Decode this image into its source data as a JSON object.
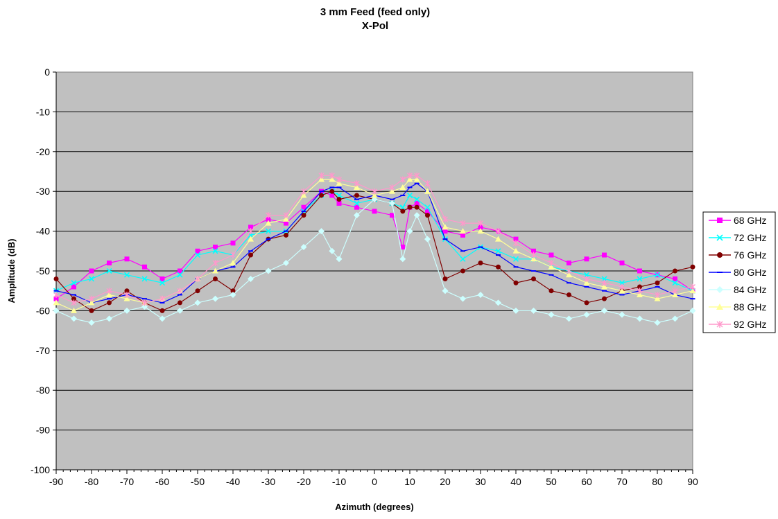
{
  "chart_data": {
    "type": "line",
    "title": "3 mm Feed (feed only)",
    "subtitle": "X-Pol",
    "xlabel": "Azimuth (degrees)",
    "ylabel": "Amplitude (dB)",
    "xlim": [
      -90,
      90
    ],
    "ylim": [
      -100,
      0
    ],
    "xticks": [
      -90,
      -80,
      -70,
      -60,
      -50,
      -40,
      -30,
      -20,
      -10,
      0,
      10,
      20,
      30,
      40,
      50,
      60,
      70,
      80,
      90
    ],
    "yticks": [
      0,
      -10,
      -20,
      -30,
      -40,
      -50,
      -60,
      -70,
      -80,
      -90,
      -100
    ],
    "grid": "horizontal",
    "plot_background": "#c0c0c0",
    "legend": "right",
    "x": [
      -90,
      -85,
      -80,
      -75,
      -70,
      -65,
      -60,
      -55,
      -50,
      -45,
      -40,
      -35,
      -30,
      -25,
      -20,
      -15,
      -12,
      -10,
      -5,
      0,
      5,
      8,
      10,
      12,
      15,
      20,
      25,
      30,
      35,
      40,
      45,
      50,
      55,
      60,
      65,
      70,
      75,
      80,
      85,
      90
    ],
    "series": [
      {
        "name": "68 GHz",
        "color": "#ff00ff",
        "marker": "square",
        "values": [
          -57,
          -54,
          -50,
          -48,
          -47,
          -49,
          -52,
          -50,
          -45,
          -44,
          -43,
          -39,
          -37,
          -38,
          -34,
          -30,
          -31,
          -33,
          -34,
          -35,
          -36,
          -44,
          -34,
          -33,
          -35,
          -40,
          -41,
          -39,
          -40,
          -42,
          -45,
          -46,
          -48,
          -47,
          -46,
          -48,
          -50,
          -51,
          -52,
          -55
        ]
      },
      {
        "name": "72 GHz",
        "color": "#00ffff",
        "marker": "x",
        "values": [
          -55,
          -53,
          -52,
          -50,
          -51,
          -52,
          -53,
          -51,
          -46,
          -45,
          -46,
          -41,
          -40,
          -40,
          -35,
          -31,
          -30,
          -31,
          -33,
          -32,
          -33,
          -34,
          -31,
          -32,
          -34,
          -42,
          -47,
          -44,
          -45,
          -47,
          -47,
          -49,
          -50,
          -51,
          -52,
          -53,
          -52,
          -51,
          -53,
          -55
        ]
      },
      {
        "name": "76 GHz",
        "color": "#800000",
        "marker": "circle",
        "values": [
          -52,
          -57,
          -60,
          -58,
          -55,
          -58,
          -60,
          -58,
          -55,
          -52,
          -55,
          -46,
          -42,
          -41,
          -36,
          -31,
          -30,
          -32,
          -31,
          -32,
          -33,
          -35,
          -34,
          -34,
          -36,
          -52,
          -50,
          -48,
          -49,
          -53,
          -52,
          -55,
          -56,
          -58,
          -57,
          -55,
          -54,
          -53,
          -50,
          -49
        ]
      },
      {
        "name": "80 GHz",
        "color": "#0000ff",
        "marker": "dash",
        "values": [
          -55,
          -56,
          -58,
          -57,
          -56,
          -57,
          -58,
          -56,
          -52,
          -50,
          -49,
          -45,
          -42,
          -40,
          -35,
          -30,
          -29,
          -29,
          -32,
          -31,
          -32,
          -31,
          -29,
          -28,
          -30,
          -42,
          -45,
          -44,
          -46,
          -49,
          -50,
          -51,
          -53,
          -54,
          -55,
          -56,
          -55,
          -54,
          -56,
          -57
        ]
      },
      {
        "name": "84 GHz",
        "color": "#ccffff",
        "marker": "diamond",
        "values": [
          -60,
          -62,
          -63,
          -62,
          -60,
          -59,
          -62,
          -60,
          -58,
          -57,
          -56,
          -52,
          -50,
          -48,
          -44,
          -40,
          -45,
          -47,
          -36,
          -32,
          -33,
          -47,
          -40,
          -36,
          -42,
          -55,
          -57,
          -56,
          -58,
          -60,
          -60,
          -61,
          -62,
          -61,
          -60,
          -61,
          -62,
          -63,
          -62,
          -60
        ]
      },
      {
        "name": "88 GHz",
        "color": "#ffff99",
        "marker": "triangle",
        "values": [
          -58,
          -60,
          -58,
          -56,
          -57,
          -58,
          -57,
          -55,
          -52,
          -50,
          -48,
          -42,
          -38,
          -37,
          -31,
          -27,
          -27,
          -28,
          -29,
          -31,
          -30,
          -29,
          -27,
          -27,
          -30,
          -39,
          -40,
          -40,
          -42,
          -45,
          -47,
          -49,
          -51,
          -53,
          -54,
          -55,
          -56,
          -57,
          -56,
          -55
        ]
      },
      {
        "name": "92 GHz",
        "color": "#ff99cc",
        "marker": "asterisk",
        "values": [
          -56,
          -58,
          -57,
          -55,
          -56,
          -58,
          -57,
          -55,
          -52,
          -48,
          -46,
          -40,
          -36,
          -36,
          -30,
          -26,
          -26,
          -27,
          -28,
          -30,
          -29,
          -27,
          -26,
          -26,
          -28,
          -37,
          -38,
          -38,
          -40,
          -43,
          -46,
          -48,
          -50,
          -52,
          -53,
          -54,
          -55,
          -56,
          -55,
          -54
        ]
      }
    ]
  }
}
